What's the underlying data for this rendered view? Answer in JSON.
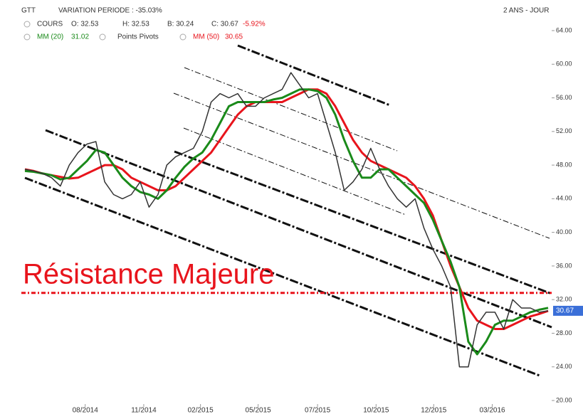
{
  "chart_data": {
    "type": "line",
    "title": "GTT",
    "variation": "VARIATION PERIODE : -35.03%",
    "period": "2 ANS - JOUR",
    "legend": {
      "price_name": "COURS",
      "open": "O: 32.53",
      "high": "H: 32.53",
      "low": "B: 30.24",
      "close": "C: 30.67",
      "change": "-5.92%",
      "ma20_name": "MM (20)",
      "ma20_value": "31.02",
      "pivots": "Points Pivots",
      "ma50_name": "MM (50)",
      "ma50_value": "30.65"
    },
    "annotation": "Résistance  Majeure",
    "resistance_level": 32.8,
    "price_tag": "30.67",
    "xlim": [
      0,
      59
    ],
    "xticks": [
      {
        "value": 6.8,
        "label": "08/2014"
      },
      {
        "value": 13.4,
        "label": "11/2014"
      },
      {
        "value": 19.8,
        "label": "02/2015"
      },
      {
        "value": 26.3,
        "label": "05/2015"
      },
      {
        "value": 33.0,
        "label": "07/2015"
      },
      {
        "value": 39.6,
        "label": "10/2015"
      },
      {
        "value": 46.1,
        "label": "12/2015"
      },
      {
        "value": 52.7,
        "label": "03/2016"
      }
    ],
    "ylim": [
      20,
      64
    ],
    "yticks": [
      {
        "value": 20,
        "label": "20.00"
      },
      {
        "value": 24,
        "label": "24.00"
      },
      {
        "value": 28,
        "label": "28.00"
      },
      {
        "value": 32,
        "label": "32.00"
      },
      {
        "value": 36,
        "label": "36.00"
      },
      {
        "value": 40,
        "label": "40.00"
      },
      {
        "value": 44,
        "label": "44.00"
      },
      {
        "value": 48,
        "label": "48.00"
      },
      {
        "value": 52,
        "label": "52.00"
      },
      {
        "value": 56,
        "label": "56.00"
      },
      {
        "value": 60,
        "label": "60.00"
      },
      {
        "value": 64,
        "label": "64.00"
      }
    ],
    "series": [
      {
        "name": "COURS",
        "color": "#333333",
        "values": [
          47.5,
          47.3,
          47,
          46.5,
          45.5,
          48,
          49.5,
          50.5,
          50.8,
          46,
          44.5,
          44,
          44.5,
          46,
          43,
          44.5,
          48,
          49,
          49.5,
          50,
          52,
          55.5,
          56.5,
          56,
          56.5,
          55,
          55,
          56,
          56.5,
          57,
          59,
          57.5,
          56,
          56.5,
          53,
          49.5,
          45,
          46,
          47.5,
          50,
          47.5,
          45.5,
          44,
          43,
          44,
          40.5,
          38,
          36,
          33.5,
          24,
          24,
          29,
          30.5,
          30.5,
          28.5,
          32,
          31,
          31,
          30.5,
          30.67
        ]
      },
      {
        "name": "MM (20)",
        "color": "#1a8a1a",
        "values": [
          47.3,
          47.2,
          47,
          46.8,
          46.3,
          46.5,
          47.5,
          48.5,
          49.8,
          49.5,
          48,
          46.5,
          45.5,
          44.8,
          44.5,
          44,
          45,
          46.5,
          47.8,
          48.8,
          49.5,
          51,
          53,
          55,
          55.5,
          55.5,
          55.5,
          55.5,
          55.8,
          56,
          56.5,
          57,
          57,
          56.8,
          56,
          54,
          51,
          48.5,
          46.5,
          46.5,
          47.5,
          47.5,
          46.5,
          45.5,
          44.5,
          43.5,
          41.5,
          39,
          36.5,
          33.5,
          27,
          25.5,
          27,
          29,
          29.5,
          29.5,
          30,
          30.5,
          30.8,
          31.02
        ]
      },
      {
        "name": "MM (50)",
        "color": "#e8141c",
        "values": [
          47.5,
          47.3,
          47,
          46.8,
          46.6,
          46.4,
          46.5,
          47,
          47.5,
          48,
          48,
          47.5,
          46.5,
          46,
          45.5,
          45,
          45,
          45.5,
          46.5,
          47.5,
          48.5,
          49.5,
          51,
          52.5,
          54,
          55,
          55.5,
          55.5,
          55.5,
          55.5,
          56,
          56.5,
          57,
          57,
          56.5,
          55,
          53,
          51,
          49.5,
          48.5,
          48,
          47.5,
          47,
          46.5,
          45.5,
          44,
          42,
          39,
          36,
          33.5,
          31,
          29.5,
          29,
          28.5,
          28.5,
          29,
          29.5,
          30,
          30.3,
          30.65
        ]
      }
    ]
  }
}
